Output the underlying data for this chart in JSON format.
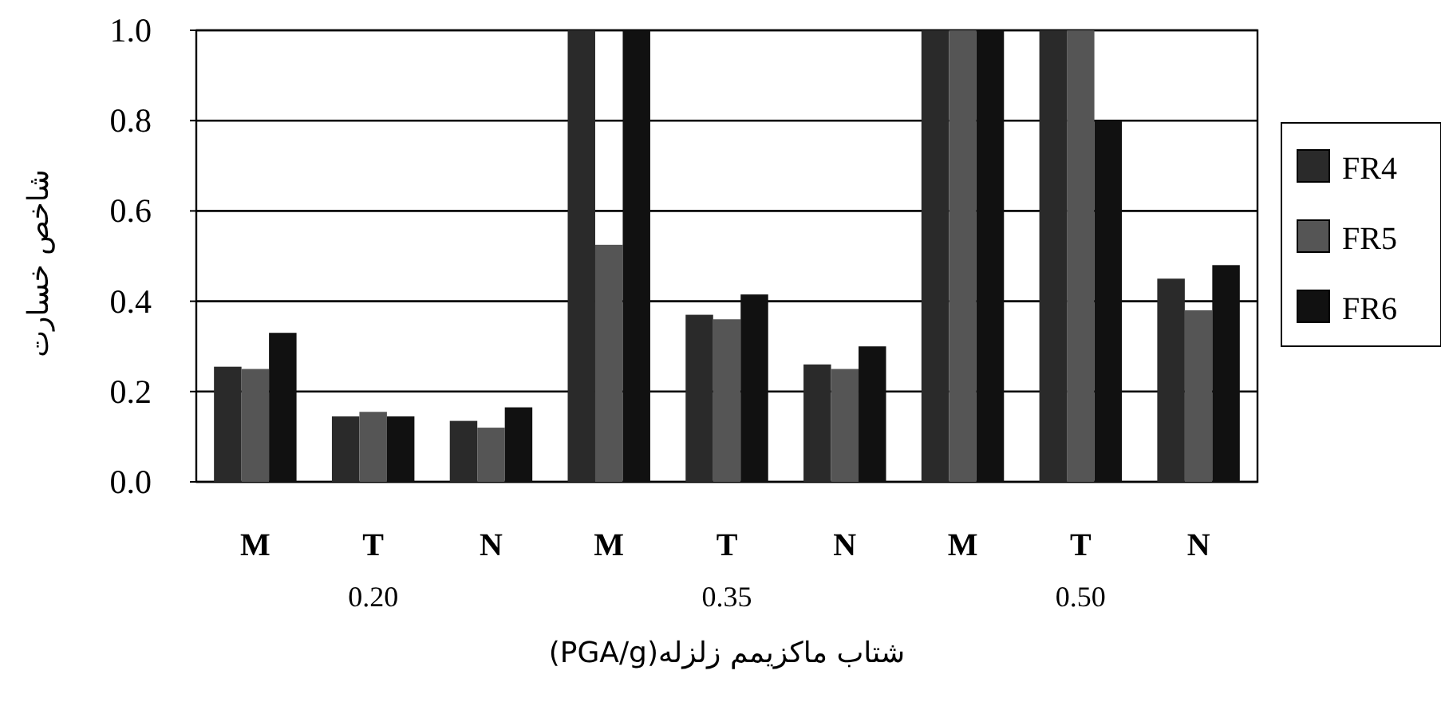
{
  "chart_data": {
    "type": "bar",
    "xlabel": "شتاب ماکزیمم زلزله(PGA/g)",
    "ylabel": "شاخص خسارت",
    "categories": [
      "M",
      "T",
      "N",
      "M",
      "T",
      "N",
      "M",
      "T",
      "N"
    ],
    "series": [
      {
        "name": "FR4",
        "color": "#2a2a2a",
        "values": [
          0.255,
          0.145,
          0.135,
          1.0,
          0.37,
          0.26,
          1.0,
          1.0,
          0.45
        ]
      },
      {
        "name": "FR5",
        "color": "#555555",
        "values": [
          0.25,
          0.155,
          0.12,
          0.525,
          0.36,
          0.25,
          1.0,
          1.0,
          0.38
        ]
      },
      {
        "name": "FR6",
        "color": "#111111",
        "values": [
          0.33,
          0.145,
          0.165,
          1.0,
          0.415,
          0.3,
          1.0,
          0.8,
          0.48
        ]
      }
    ],
    "annotations": [
      "0.20",
      "0.35",
      "0.50"
    ],
    "ylim": [
      0,
      1.0
    ],
    "yticks": [
      {
        "value": 0,
        "label": "0.0"
      },
      {
        "value": 0.2,
        "label": "0.2"
      },
      {
        "value": 0.4,
        "label": "0.4"
      },
      {
        "value": 0.6,
        "label": "0.6"
      },
      {
        "value": 0.8,
        "label": "0.8"
      },
      {
        "value": 1.0,
        "label": "1.0"
      }
    ],
    "grid": "y",
    "legend": "right"
  }
}
